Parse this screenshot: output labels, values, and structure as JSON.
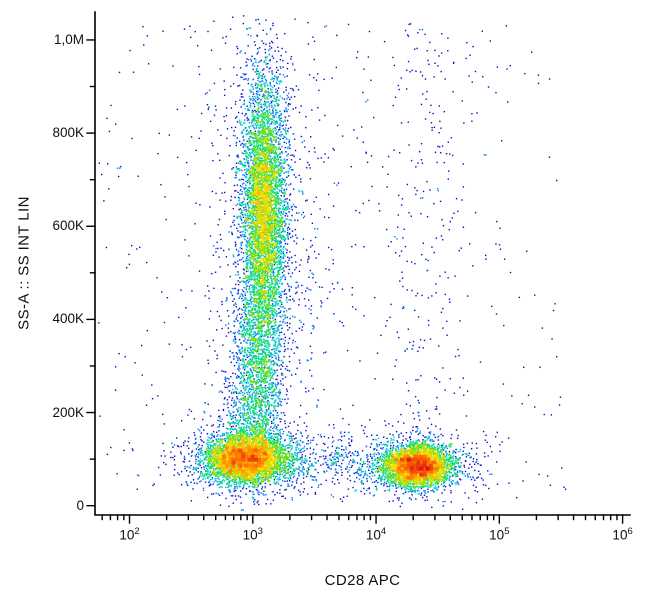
{
  "chart_data": {
    "type": "scatter",
    "subtype": "flow-cytometry-pseudocolor-density",
    "title": "",
    "xlabel": "CD28 APC",
    "ylabel": "SS-A :: SS INT LIN",
    "x_scale": "log10",
    "y_scale": "linear",
    "x_range_log10": [
      1.72,
      6.06
    ],
    "y_range": [
      -20000,
      1060000
    ],
    "x_tick_exponents": [
      2,
      3,
      4,
      5,
      6
    ],
    "y_ticks": [
      {
        "value": 0,
        "label": "0"
      },
      {
        "value": 200000,
        "label": "200K"
      },
      {
        "value": 400000,
        "label": "400K"
      },
      {
        "value": 600000,
        "label": "600K"
      },
      {
        "value": 800000,
        "label": "800K"
      },
      {
        "value": 1000000,
        "label": "1,0M"
      }
    ],
    "y_minor_step": 100000,
    "grid": false,
    "legend": false,
    "colormap": [
      "#0a0ac8",
      "#0050ff",
      "#00c8e6",
      "#00dc78",
      "#82dc00",
      "#ffdc00",
      "#ff7800",
      "#dc1414"
    ],
    "populations": [
      {
        "name": "cd28neg-low-ssc-cluster",
        "count": 4200,
        "x": {
          "dist": "lognormal10",
          "mean": 2.95,
          "sd": 0.17
        },
        "y": {
          "dist": "normal",
          "mean": 100000,
          "sd": 26000
        }
      },
      {
        "name": "cd28neg-cluster-halo",
        "count": 600,
        "x": {
          "dist": "lognormal10",
          "mean": 2.92,
          "sd": 0.3
        },
        "y": {
          "dist": "normal",
          "mean": 100000,
          "sd": 42000
        }
      },
      {
        "name": "cd28pos-low-ssc-cluster",
        "count": 3800,
        "x": {
          "dist": "lognormal10",
          "mean": 4.33,
          "sd": 0.14
        },
        "y": {
          "dist": "normal",
          "mean": 85000,
          "sd": 22000
        }
      },
      {
        "name": "cd28pos-cluster-halo",
        "count": 500,
        "x": {
          "dist": "lognormal10",
          "mean": 4.35,
          "sd": 0.3
        },
        "y": {
          "dist": "normal",
          "mean": 88000,
          "sd": 36000
        }
      },
      {
        "name": "high-ssc-column-main",
        "count": 5200,
        "x": {
          "dist": "lognormal10",
          "mean": 3.09,
          "sd": 0.09
        },
        "y": {
          "dist": "normal",
          "mean": 640000,
          "sd": 140000
        }
      },
      {
        "name": "high-ssc-column-lower",
        "count": 1300,
        "x": {
          "dist": "lognormal10",
          "mean": 3.05,
          "sd": 0.1
        },
        "y": {
          "dist": "normal",
          "mean": 330000,
          "sd": 95000
        }
      },
      {
        "name": "high-ssc-column-base",
        "count": 700,
        "x": {
          "dist": "lognormal10",
          "mean": 3.0,
          "sd": 0.12
        },
        "y": {
          "dist": "normal",
          "mean": 185000,
          "sd": 60000
        }
      },
      {
        "name": "column-halo",
        "count": 900,
        "x": {
          "dist": "lognormal10",
          "mean": 3.1,
          "sd": 0.28
        },
        "y": {
          "dist": "normal",
          "mean": 560000,
          "sd": 260000
        }
      },
      {
        "name": "bridge-band",
        "count": 330,
        "x": {
          "dist": "uniform_log10",
          "min": 3.25,
          "max": 4.1
        },
        "y": {
          "dist": "normal",
          "mean": 95000,
          "sd": 30000
        }
      },
      {
        "name": "cd28pos-sparse-column",
        "count": 230,
        "x": {
          "dist": "lognormal10",
          "mean": 4.35,
          "sd": 0.18
        },
        "y": {
          "dist": "uniform",
          "min": 130000,
          "max": 1040000
        }
      },
      {
        "name": "background-scatter",
        "count": 380,
        "x": {
          "dist": "uniform_log10",
          "min": 1.75,
          "max": 5.55
        },
        "y": {
          "dist": "uniform",
          "min": 5000,
          "max": 1040000
        }
      }
    ]
  }
}
